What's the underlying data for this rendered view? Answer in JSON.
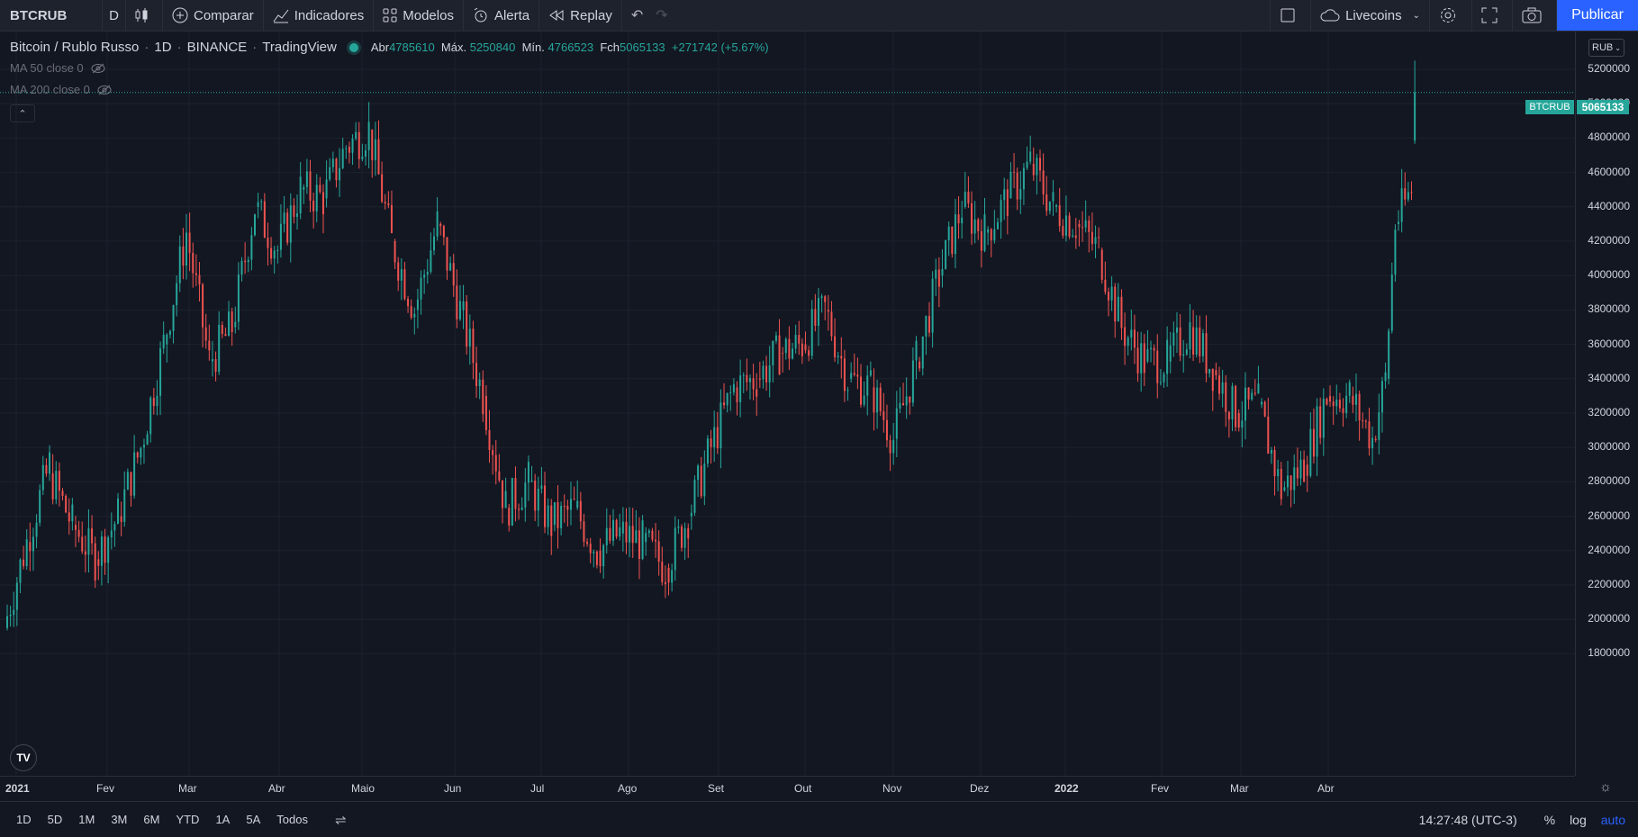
{
  "toolbar": {
    "symbol": "BTCRUB",
    "interval": "D",
    "compare": "Comparar",
    "indicators": "Indicadores",
    "templates": "Modelos",
    "alert": "Alerta",
    "replay": "Replay",
    "layout_name": "Livecoins",
    "publish": "Publicar"
  },
  "legend": {
    "title": "Bitcoin / Rublo Russo",
    "interval": "1D",
    "exchange": "BINANCE",
    "source": "TradingView",
    "open_label": "Abr",
    "open": "4785610",
    "high_label": "Máx.",
    "high": "5250840",
    "low_label": "Mín.",
    "low": "4766523",
    "close_label": "Fch",
    "close": "5065133",
    "change": "+271742 (+5.67%)"
  },
  "indicators": [
    {
      "label": "MA 50 close 0"
    },
    {
      "label": "MA 200 close 0"
    }
  ],
  "price_scale": {
    "currency": "RUB",
    "labels": [
      "5200000",
      "5000000",
      "4800000",
      "4600000",
      "4400000",
      "4200000",
      "4000000",
      "3800000",
      "3600000",
      "3400000",
      "3200000",
      "3000000",
      "2800000",
      "2600000",
      "2400000",
      "2200000",
      "2000000",
      "1800000"
    ],
    "last_symbol": "BTCRUB",
    "last_price": "5065133"
  },
  "time_axis": {
    "labels": [
      "2021",
      "Fev",
      "Mar",
      "Abr",
      "Maio",
      "Jun",
      "Jul",
      "Ago",
      "Set",
      "Out",
      "Nov",
      "Dez",
      "2022",
      "Fev",
      "Mar",
      "Abr"
    ]
  },
  "bottom": {
    "ranges": [
      "1D",
      "5D",
      "1M",
      "3M",
      "6M",
      "YTD",
      "1A",
      "5A",
      "Todos"
    ],
    "clock": "14:27:48 (UTC-3)",
    "percent": "%",
    "log": "log",
    "auto": "auto"
  },
  "colors": {
    "up": "#26a69a",
    "down": "#ef5350",
    "background": "#131722",
    "accent": "#2962ff"
  },
  "chart_data": {
    "type": "candlestick",
    "title": "Bitcoin / Rublo Russo",
    "x_range": [
      "2021-01-01",
      "2022-04-15"
    ],
    "ylim": [
      1700000,
      5300000
    ],
    "series": [
      {
        "values": [
          [
            "2021-01-01",
            1950000,
            2450000
          ],
          [
            "2021-01-08",
            2450000,
            2900000
          ],
          [
            "2021-01-15",
            2850000,
            2550000
          ],
          [
            "2021-01-22",
            2550000,
            2350000
          ],
          [
            "2021-01-29",
            2350000,
            2600000
          ],
          [
            "2021-02-05",
            2600000,
            3000000
          ],
          [
            "2021-02-12",
            3000000,
            3600000
          ],
          [
            "2021-02-19",
            3600000,
            4250000
          ],
          [
            "2021-02-26",
            4250000,
            3500000
          ],
          [
            "2021-03-05",
            3500000,
            3700000
          ],
          [
            "2021-03-12",
            3700000,
            4400000
          ],
          [
            "2021-03-19",
            4400000,
            4150000
          ],
          [
            "2021-03-26",
            4150000,
            4500000
          ],
          [
            "2021-04-02",
            4500000,
            4450000
          ],
          [
            "2021-04-09",
            4450000,
            4750000
          ],
          [
            "2021-04-16",
            4750000,
            4850000
          ],
          [
            "2021-04-23",
            4850000,
            4200000
          ],
          [
            "2021-04-30",
            4200000,
            3800000
          ],
          [
            "2021-05-07",
            3800000,
            4300000
          ],
          [
            "2021-05-14",
            4300000,
            3800000
          ],
          [
            "2021-05-21",
            3800000,
            3300000
          ],
          [
            "2021-05-28",
            3300000,
            2650000
          ],
          [
            "2021-06-04",
            2650000,
            2800000
          ],
          [
            "2021-06-11",
            2800000,
            2550000
          ],
          [
            "2021-06-18",
            2550000,
            2650000
          ],
          [
            "2021-06-25",
            2650000,
            2400000
          ],
          [
            "2021-07-02",
            2400000,
            2500000
          ],
          [
            "2021-07-09",
            2500000,
            2450000
          ],
          [
            "2021-07-16",
            2450000,
            2300000
          ],
          [
            "2021-07-23",
            2300000,
            2600000
          ],
          [
            "2021-07-30",
            2600000,
            3000000
          ],
          [
            "2021-08-06",
            3000000,
            3350000
          ],
          [
            "2021-08-13",
            3350000,
            3400000
          ],
          [
            "2021-08-20",
            3400000,
            3550000
          ],
          [
            "2021-08-27",
            3550000,
            3600000
          ],
          [
            "2021-09-03",
            3600000,
            3800000
          ],
          [
            "2021-09-10",
            3800000,
            3400000
          ],
          [
            "2021-09-17",
            3400000,
            3350000
          ],
          [
            "2021-09-24",
            3350000,
            3050000
          ],
          [
            "2021-10-01",
            3050000,
            3500000
          ],
          [
            "2021-10-08",
            3500000,
            4000000
          ],
          [
            "2021-10-15",
            4000000,
            4400000
          ],
          [
            "2021-10-22",
            4400000,
            4250000
          ],
          [
            "2021-10-29",
            4250000,
            4450000
          ],
          [
            "2021-11-05",
            4450000,
            4650000
          ],
          [
            "2021-11-12",
            4650000,
            4400000
          ],
          [
            "2021-11-19",
            4400000,
            4300000
          ],
          [
            "2021-11-26",
            4300000,
            4150000
          ],
          [
            "2021-12-03",
            4150000,
            3700000
          ],
          [
            "2021-12-10",
            3700000,
            3500000
          ],
          [
            "2021-12-17",
            3500000,
            3500000
          ],
          [
            "2021-12-24",
            3500000,
            3700000
          ],
          [
            "2021-12-31",
            3700000,
            3450000
          ],
          [
            "2022-01-07",
            3450000,
            3200000
          ],
          [
            "2022-01-14",
            3200000,
            3250000
          ],
          [
            "2022-01-21",
            3250000,
            2750000
          ],
          [
            "2022-01-28",
            2750000,
            2900000
          ],
          [
            "2022-02-04",
            2900000,
            3300000
          ],
          [
            "2022-02-11",
            3300000,
            3300000
          ],
          [
            "2022-02-18",
            3300000,
            3050000
          ],
          [
            "2022-02-25",
            3050000,
            3400000
          ],
          [
            "2022-03-01",
            3400000,
            4300000
          ],
          [
            "2022-03-04",
            4300000,
            4500000
          ],
          [
            "2022-03-09",
            4785610,
            5065133
          ]
        ]
      }
    ]
  }
}
